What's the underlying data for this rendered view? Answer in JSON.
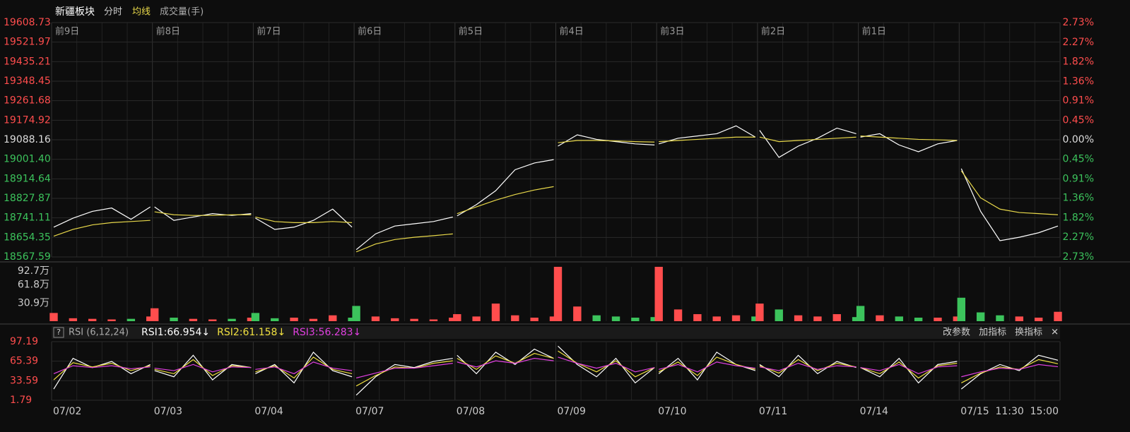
{
  "chart_data": {
    "type": "intraday",
    "header": {
      "title": "新疆板块",
      "mode": "分时",
      "avg_label": "均线",
      "volume_label": "成交量(手)"
    },
    "day_labels": [
      "前9日",
      "前8日",
      "前7日",
      "前6日",
      "前5日",
      "前4日",
      "前3日",
      "前2日",
      "前1日"
    ],
    "days": [
      "07/02",
      "07/03",
      "07/04",
      "07/07",
      "07/08",
      "07/09",
      "07/10",
      "07/11",
      "07/14",
      "07/15"
    ],
    "time_labels": [
      "11:30",
      "15:00"
    ],
    "ylim": [
      18567.59,
      19608.73
    ],
    "yticks": [
      19608.73,
      19521.97,
      19435.21,
      19348.45,
      19261.68,
      19174.92,
      19088.16,
      {
        "value": 19001.4,
        "label": "19001.40"
      },
      18914.64,
      18827.87,
      18741.11,
      18654.35,
      18567.59
    ],
    "y2lim": [
      -2.73,
      2.73
    ],
    "y2ticks": [
      {
        "value": 2.73,
        "label": "2.73%"
      },
      {
        "value": 2.27,
        "label": "2.27%"
      },
      {
        "value": 1.82,
        "label": "1.82%"
      },
      {
        "value": 1.36,
        "label": "1.36%"
      },
      {
        "value": 0.91,
        "label": "0.91%"
      },
      {
        "value": 0.45,
        "label": "0.45%"
      },
      {
        "value": 0,
        "label": "0.00%"
      },
      {
        "value": -0.45,
        "label": "0.45%"
      },
      {
        "value": -0.91,
        "label": "0.91%"
      },
      {
        "value": -1.36,
        "label": "1.36%"
      },
      {
        "value": -1.82,
        "label": "1.82%"
      },
      {
        "value": -2.27,
        "label": "2.27%"
      },
      {
        "value": -2.73,
        "label": "2.73%"
      }
    ],
    "up_color": "#ff4d4d",
    "down_color": "#3cc35c",
    "series": [
      {
        "color": "#ffffff",
        "values": [
          [
            18700,
            18740,
            18770,
            18785,
            18735,
            18790
          ],
          [
            18790,
            18730,
            18745,
            18760,
            18752,
            18760
          ],
          [
            18740,
            18690,
            18700,
            18730,
            18780,
            18700
          ],
          [
            18600,
            18670,
            18705,
            18715,
            18725,
            18745
          ],
          [
            18750,
            18800,
            18862,
            18955,
            18985,
            19000
          ],
          [
            19060,
            19110,
            19090,
            19080,
            19070,
            19065
          ],
          [
            19070,
            19095,
            19105,
            19115,
            19150,
            19100
          ],
          [
            19130,
            19010,
            19060,
            19095,
            19140,
            19115
          ],
          [
            19100,
            19115,
            19065,
            19035,
            19070,
            19085
          ],
          [
            18960,
            18770,
            18640,
            18655,
            18675,
            18705
          ]
        ]
      },
      {
        "color": "#e8d84a",
        "values": [
          [
            18660,
            18690,
            18710,
            18720,
            18725,
            18730
          ],
          [
            18768,
            18755,
            18752,
            18752,
            18755,
            18755
          ],
          [
            18745,
            18725,
            18720,
            18720,
            18725,
            18720
          ],
          [
            18590,
            18625,
            18645,
            18655,
            18662,
            18670
          ],
          [
            18760,
            18790,
            18820,
            18845,
            18865,
            18880
          ],
          [
            19075,
            19085,
            19085,
            19083,
            19080,
            19078
          ],
          [
            19080,
            19085,
            19090,
            19095,
            19100,
            19100
          ],
          [
            19100,
            19080,
            19085,
            19090,
            19095,
            19100
          ],
          [
            19105,
            19100,
            19095,
            19090,
            19088,
            19085
          ],
          [
            18950,
            18830,
            18780,
            18765,
            18760,
            18755
          ]
        ]
      }
    ],
    "volume": {
      "ylim": [
        0,
        92.7
      ],
      "yticks": [
        {
          "value": 92.7,
          "label": "92.7万"
        },
        {
          "value": 61.8,
          "label": "61.8万"
        },
        {
          "value": 30.9,
          "label": "30.9万"
        }
      ],
      "values": [
        [
          14,
          5,
          4,
          3,
          4,
          8
        ],
        [
          22,
          6,
          4,
          3,
          4,
          6
        ],
        [
          14,
          5,
          6,
          4,
          10,
          6
        ],
        [
          26,
          8,
          5,
          4,
          3,
          6
        ],
        [
          12,
          8,
          30,
          10,
          6,
          8
        ],
        [
          92.7,
          25,
          10,
          8,
          6,
          7
        ],
        [
          92.7,
          20,
          12,
          8,
          10,
          8
        ],
        [
          30,
          20,
          10,
          8,
          12,
          7
        ],
        [
          26,
          10,
          8,
          6,
          6,
          8
        ],
        [
          40,
          15,
          10,
          8,
          6,
          16
        ]
      ]
    },
    "rsi": {
      "help": "?",
      "title": "RSI (6,12,24)",
      "ylim": [
        1.79,
        97.19
      ],
      "yticks": [
        97.19,
        65.39,
        33.59,
        1.79
      ],
      "buttons": [
        "改参数",
        "加指标",
        "换指标",
        "✕"
      ],
      "series": [
        {
          "name": "RSI1:66.954↓",
          "color": "#ffffff",
          "values": [
            [
              20,
              70,
              55,
              65,
              45,
              60
            ],
            [
              50,
              40,
              75,
              35,
              60,
              55
            ],
            [
              45,
              60,
              30,
              80,
              50,
              40
            ],
            [
              10,
              40,
              60,
              55,
              65,
              70
            ],
            [
              75,
              45,
              80,
              60,
              85,
              70
            ],
            [
              90,
              60,
              40,
              70,
              30,
              55
            ],
            [
              45,
              70,
              35,
              80,
              60,
              50
            ],
            [
              60,
              40,
              75,
              45,
              65,
              55
            ],
            [
              55,
              40,
              70,
              30,
              60,
              65
            ],
            [
              20,
              45,
              60,
              50,
              75,
              66.954
            ]
          ]
        },
        {
          "name": "RSI2:61.158↓",
          "color": "#f0e040",
          "values": [
            [
              35,
              63,
              56,
              62,
              50,
              58
            ],
            [
              52,
              45,
              68,
              42,
              58,
              55
            ],
            [
              48,
              58,
              38,
              72,
              52,
              45
            ],
            [
              25,
              42,
              56,
              54,
              62,
              66
            ],
            [
              70,
              52,
              74,
              62,
              78,
              70
            ],
            [
              82,
              62,
              48,
              66,
              40,
              55
            ],
            [
              48,
              64,
              42,
              72,
              60,
              52
            ],
            [
              58,
              46,
              68,
              50,
              62,
              56
            ],
            [
              55,
              45,
              64,
              38,
              58,
              62
            ],
            [
              30,
              46,
              56,
              52,
              68,
              61.158
            ]
          ]
        },
        {
          "name": "RSI3:56.283↓",
          "color": "#e040e0",
          "values": [
            [
              45,
              58,
              55,
              58,
              53,
              56
            ],
            [
              54,
              50,
              60,
              48,
              56,
              55
            ],
            [
              52,
              56,
              45,
              64,
              54,
              50
            ],
            [
              38,
              46,
              54,
              54,
              58,
              62
            ],
            [
              64,
              56,
              66,
              62,
              70,
              66
            ],
            [
              72,
              62,
              54,
              62,
              48,
              55
            ],
            [
              52,
              60,
              48,
              64,
              58,
              54
            ],
            [
              56,
              50,
              62,
              52,
              58,
              56
            ],
            [
              55,
              50,
              60,
              45,
              56,
              58
            ],
            [
              40,
              48,
              54,
              52,
              60,
              56.283
            ]
          ]
        }
      ]
    }
  }
}
